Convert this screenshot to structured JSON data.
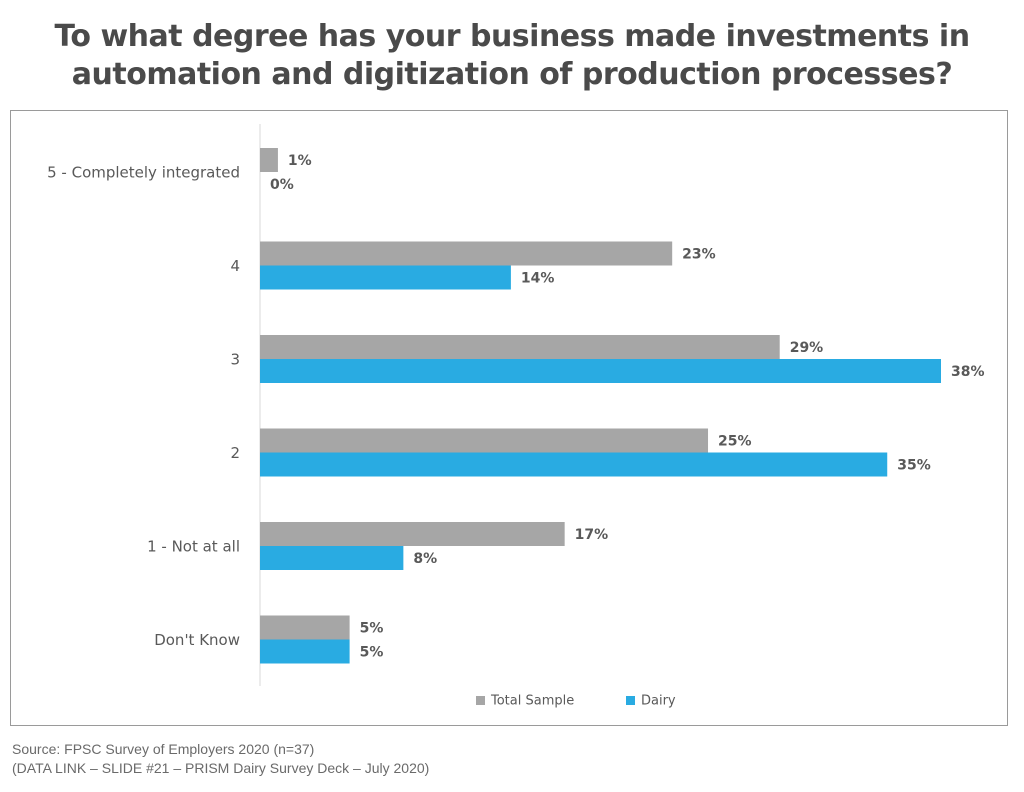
{
  "title": {
    "line1": "To what degree has your business made investments in",
    "line2": "automation and digitization of production processes?"
  },
  "chart_data": {
    "type": "bar",
    "orientation": "horizontal",
    "categories": [
      "5 - Completely integrated",
      "4",
      "3",
      "2",
      "1 - Not at all",
      "Don't Know"
    ],
    "series": [
      {
        "name": "Total Sample",
        "color": "#a6a6a6",
        "values": [
          1,
          23,
          29,
          25,
          17,
          5
        ],
        "labels": [
          "1%",
          "23%",
          "29%",
          "25%",
          "17%",
          "5%"
        ]
      },
      {
        "name": "Dairy",
        "color": "#29abe2",
        "values": [
          0,
          14,
          38,
          35,
          8,
          5
        ],
        "labels": [
          "0%",
          "14%",
          "38%",
          "35%",
          "8%",
          "5%"
        ]
      }
    ],
    "xlim": [
      0,
      38
    ],
    "grid": false,
    "legend_position": "bottom-center"
  },
  "source": {
    "line1": "Source: FPSC Survey of Employers 2020 (n=37)",
    "line2": "(DATA LINK – SLIDE #21 – PRISM Dairy Survey Deck – July 2020)"
  }
}
